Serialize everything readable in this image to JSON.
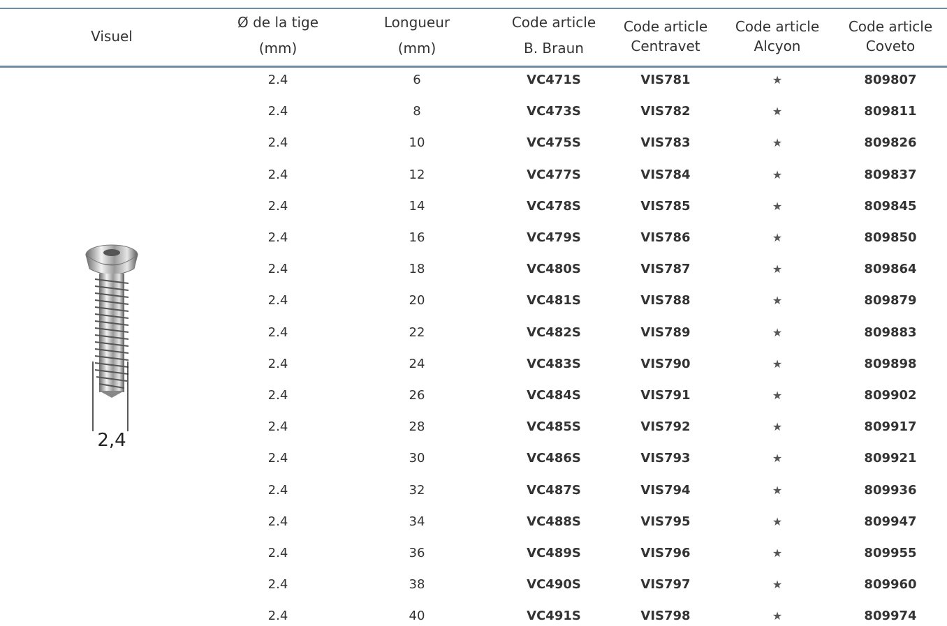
{
  "table": {
    "header": [
      [
        "Visuel"
      ],
      [
        "Ø de la tige",
        "(mm)"
      ],
      [
        "Longueur",
        "(mm)"
      ],
      [
        "Code article",
        "B. Braun"
      ],
      [
        "Code article",
        "Centravet"
      ],
      [
        "Code article",
        "Alcyon"
      ],
      [
        "Code article",
        "Coveto"
      ]
    ],
    "visual_label": "2,4",
    "rows": [
      [
        "2.4",
        "6",
        "VC471S",
        "VIS781",
        "★",
        "809807"
      ],
      [
        "2.4",
        "8",
        "VC473S",
        "VIS782",
        "★",
        "809811"
      ],
      [
        "2.4",
        "10",
        "VC475S",
        "VIS783",
        "★",
        "809826"
      ],
      [
        "2.4",
        "12",
        "VC477S",
        "VIS784",
        "★",
        "809837"
      ],
      [
        "2.4",
        "14",
        "VC478S",
        "VIS785",
        "★",
        "809845"
      ],
      [
        "2.4",
        "16",
        "VC479S",
        "VIS786",
        "★",
        "809850"
      ],
      [
        "2.4",
        "18",
        "VC480S",
        "VIS787",
        "★",
        "809864"
      ],
      [
        "2.4",
        "20",
        "VC481S",
        "VIS788",
        "★",
        "809879"
      ],
      [
        "2.4",
        "22",
        "VC482S",
        "VIS789",
        "★",
        "809883"
      ],
      [
        "2.4",
        "24",
        "VC483S",
        "VIS790",
        "★",
        "809898"
      ],
      [
        "2.4",
        "26",
        "VC484S",
        "VIS791",
        "★",
        "809902"
      ],
      [
        "2.4",
        "28",
        "VC485S",
        "VIS792",
        "★",
        "809917"
      ],
      [
        "2.4",
        "30",
        "VC486S",
        "VIS793",
        "★",
        "809921"
      ],
      [
        "2.4",
        "32",
        "VC487S",
        "VIS794",
        "★",
        "809936"
      ],
      [
        "2.4",
        "34",
        "VC488S",
        "VIS795",
        "★",
        "809947"
      ],
      [
        "2.4",
        "36",
        "VC489S",
        "VIS796",
        "★",
        "809955"
      ],
      [
        "2.4",
        "38",
        "VC490S",
        "VIS797",
        "★",
        "809960"
      ],
      [
        "2.4",
        "40",
        "VC491S",
        "VIS798",
        "★",
        "809974"
      ]
    ]
  }
}
